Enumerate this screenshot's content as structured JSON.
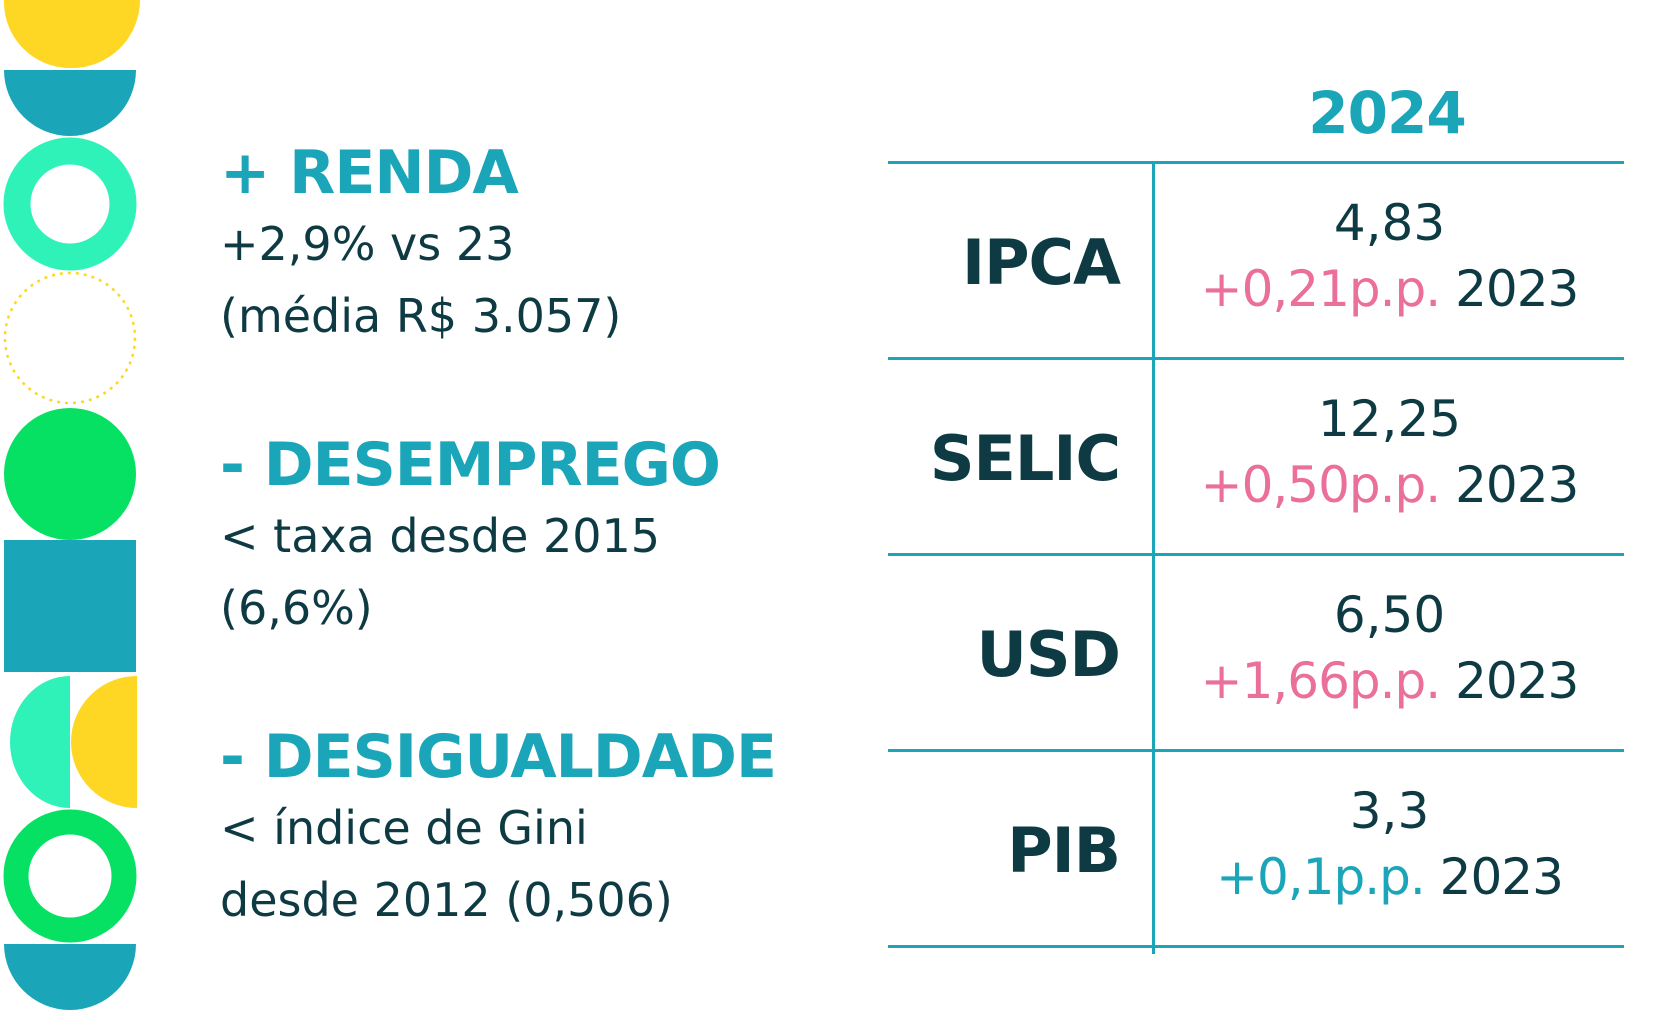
{
  "colors": {
    "teal": "#1ba5b8",
    "dark": "#0e3b43",
    "pink": "#ea6f9b",
    "mint": "#2ef2b8",
    "green": "#06e063",
    "yellow": "#fed725"
  },
  "indicators": [
    {
      "heading": "+ RENDA",
      "line1": "+2,9% vs 23",
      "line2": "(média R$ 3.057)"
    },
    {
      "heading": "- DESEMPREGO",
      "line1": "< taxa desde 2015",
      "line2": "(6,6%)"
    },
    {
      "heading": "- DESIGUALDADE",
      "line1": "< índice de Gini",
      "line2": "desde 2012 (0,506)"
    }
  ],
  "table": {
    "year": "2024",
    "rows": [
      {
        "label": "IPCA",
        "value": "4,83",
        "delta": "+0,21p.p.",
        "ref": "2023"
      },
      {
        "label": "SELIC",
        "value": "12,25",
        "delta": "+0,50p.p.",
        "ref": "2023"
      },
      {
        "label": "USD",
        "value": "6,50",
        "delta": "+1,66p.p.",
        "ref": "2023"
      },
      {
        "label": "PIB",
        "value": "3,3",
        "delta": "+0,1p.p.",
        "ref": "2023"
      }
    ]
  }
}
